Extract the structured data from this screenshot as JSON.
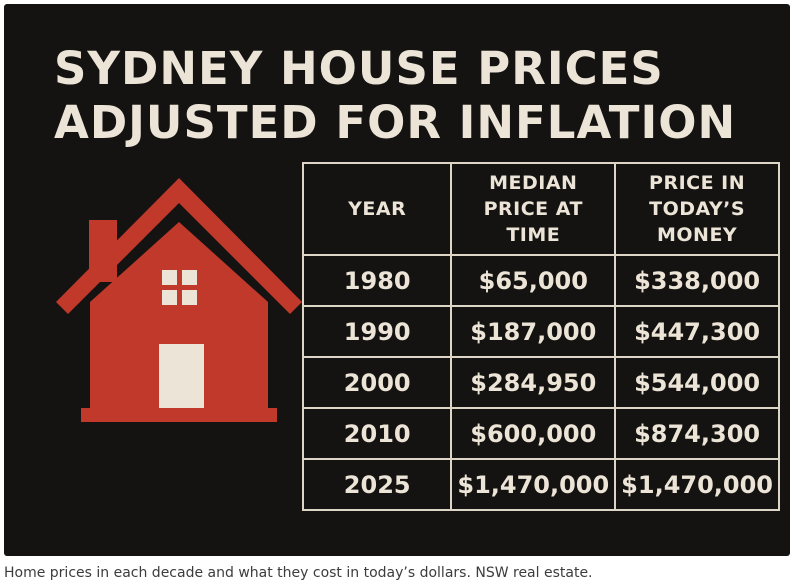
{
  "poster": {
    "title_line1": "SYDNEY HOUSE PRICES",
    "title_line2": "ADJUSTED FOR INFLATION",
    "icon": "house-icon",
    "colors": {
      "background": "#141312",
      "text": "#ece4d6",
      "house": "#c0392b",
      "house_detail": "#ece4d6"
    }
  },
  "table": {
    "headers": {
      "year": "YEAR",
      "median_l1": "MEDIAN",
      "median_l2": "PRICE AT",
      "median_l3": "TIME",
      "today_l1": "PRICE IN",
      "today_l2": "TODAY’S",
      "today_l3": "MONEY"
    },
    "rows": [
      {
        "year": "1980",
        "median": "$65,000",
        "today": "$338,000"
      },
      {
        "year": "1990",
        "median": "$187,000",
        "today": "$447,300"
      },
      {
        "year": "2000",
        "median": "$284,950",
        "today": "$544,000"
      },
      {
        "year": "2010",
        "median": "$600,000",
        "today": "$874,300"
      },
      {
        "year": "2025",
        "median": "$1,470,000",
        "today": "$1,470,000"
      }
    ]
  },
  "caption": "Home prices in each decade and what they cost in today’s dollars. NSW real estate."
}
